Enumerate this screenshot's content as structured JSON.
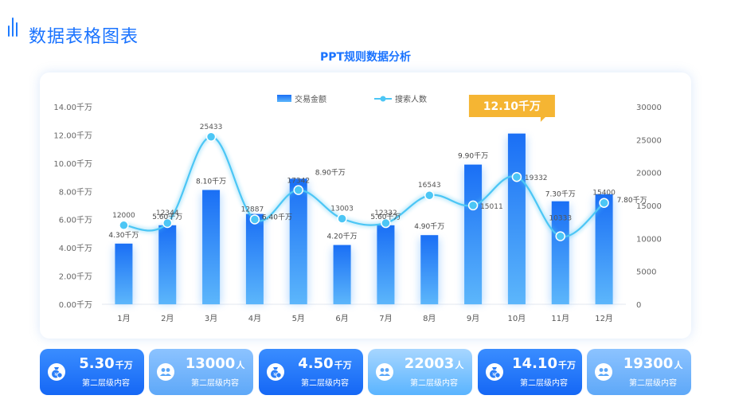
{
  "page": {
    "title": "数据表格图表",
    "chart_title": "PPT规则数据分析"
  },
  "colors": {
    "accent": "#1a73ff",
    "bar": "#2f8dfb",
    "line": "#4cc6f5",
    "callout": "#f5b533"
  },
  "chart_data": {
    "type": "bar",
    "categories": [
      "1月",
      "2月",
      "3月",
      "4月",
      "5月",
      "6月",
      "7月",
      "8月",
      "9月",
      "10月",
      "11月",
      "12月"
    ],
    "series": [
      {
        "name": "交易金额",
        "type": "bar",
        "axis": "left",
        "values": [
          4.3,
          5.6,
          8.1,
          6.4,
          8.9,
          4.2,
          5.6,
          4.9,
          9.9,
          12.1,
          7.3,
          7.8
        ],
        "labels": [
          "4.30千万",
          "5.60千万",
          "8.10千万",
          "6.40千万",
          "8.90千万",
          "4.20千万",
          "5.60千万",
          "4.90千万",
          "9.90千万",
          "",
          "7.30千万",
          "7.80千万"
        ]
      },
      {
        "name": "搜索人数",
        "type": "line",
        "axis": "right",
        "values": [
          12000,
          12344,
          25433,
          12887,
          17342,
          13003,
          12332,
          16543,
          15011,
          19332,
          10333,
          15400
        ],
        "labels": [
          "12000",
          "12344",
          "25433",
          "12887",
          "17342",
          "13003",
          "12332",
          "16543",
          "15011",
          "19332",
          "10333",
          "15400"
        ]
      }
    ],
    "y_left": {
      "range": [
        0,
        14
      ],
      "ticks": [
        "0.00千万",
        "2.00千万",
        "4.00千万",
        "6.00千万",
        "8.00千万",
        "10.00千万",
        "12.00千万",
        "14.00千万"
      ]
    },
    "y_right": {
      "range": [
        0,
        30000
      ],
      "ticks": [
        "0",
        "5000",
        "10000",
        "15000",
        "20000",
        "25000",
        "30000"
      ]
    },
    "legend_position": "top",
    "grid": false,
    "highlight": {
      "category": "10月",
      "label": "12.10千万"
    }
  },
  "kpis": [
    {
      "value": "5.30",
      "unit": "千万",
      "label": "第二层级内容",
      "icon": "money-bag-icon",
      "style": "dark"
    },
    {
      "value": "13000",
      "unit": "人",
      "label": "第二层级内容",
      "icon": "users-icon",
      "style": "light"
    },
    {
      "value": "4.50",
      "unit": "千万",
      "label": "第二层级内容",
      "icon": "money-bag-icon",
      "style": "dark"
    },
    {
      "value": "22003",
      "unit": "人",
      "label": "第二层级内容",
      "icon": "users-icon",
      "style": "mid"
    },
    {
      "value": "14.10",
      "unit": "千万",
      "label": "第二层级内容",
      "icon": "money-bag-icon",
      "style": "dark"
    },
    {
      "value": "19300",
      "unit": "人",
      "label": "第二层级内容",
      "icon": "users-icon",
      "style": "light"
    }
  ]
}
